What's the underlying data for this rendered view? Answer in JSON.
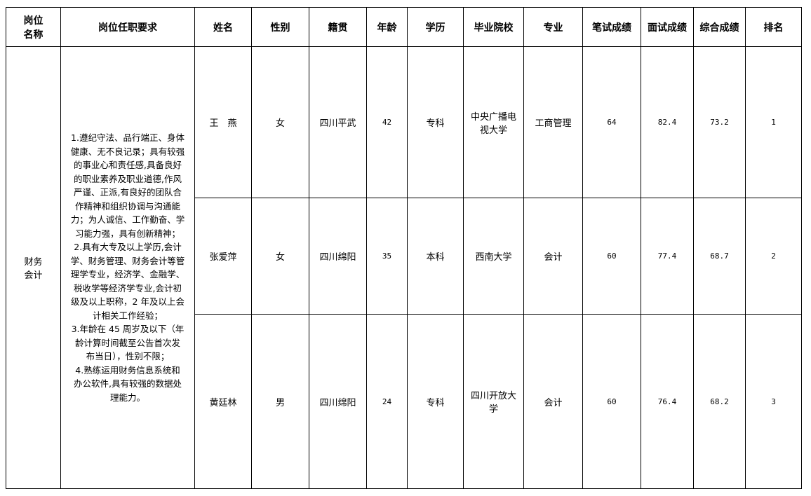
{
  "headers": [
    "岗位\n名称",
    "岗位任职要求",
    "姓名",
    "性别",
    "籍贯",
    "年龄",
    "学历",
    "毕业院校",
    "专业",
    "笔试成绩",
    "面试成绩",
    "综合成绩",
    "排名"
  ],
  "position": "财务\n会计",
  "requirements": [
    "1.遵纪守法、品行端正、身体",
    "健康、无不良记录；具有较强",
    "的事业心和责任感,具备良好",
    "的职业素养及职业道德,作风",
    "严谨、正派,有良好的团队合",
    "作精神和组织协调与沟通能",
    "力；为人诚信、工作勤奋、学",
    "习能力强，具有创新精神；",
    "2.具有大专及以上学历,会计",
    "学、财务管理、财务会计等管",
    "理学专业，经济学、金融学、",
    "税收学等经济学专业,会计初",
    "级及以上职称，2 年及以上会",
    "计相关工作经验；",
    "3.年龄在 45 周岁及以下（年",
    "龄计算时间截至公告首次发",
    "布当日），性别不限；",
    "4.熟练运用财务信息系统和",
    "办公软件,具有较强的数据处",
    "理能力。"
  ],
  "rows": [
    {
      "name": "王　燕",
      "gender": "女",
      "origin": "四川平武",
      "age": "42",
      "education": "专科",
      "school": "中央广播电\n视大学",
      "major": "工商管理",
      "written": "64",
      "interview": "82.4",
      "total": "73.2",
      "rank": "1"
    },
    {
      "name": "张爱萍",
      "gender": "女",
      "origin": "四川绵阳",
      "age": "35",
      "education": "本科",
      "school": "西南大学",
      "major": "会计",
      "written": "60",
      "interview": "77.4",
      "total": "68.7",
      "rank": "2"
    },
    {
      "name": "黄廷林",
      "gender": "男",
      "origin": "四川绵阳",
      "age": "24",
      "education": "专科",
      "school": "四川开放大\n学",
      "major": "会计",
      "written": "60",
      "interview": "76.4",
      "total": "68.2",
      "rank": "3"
    }
  ]
}
